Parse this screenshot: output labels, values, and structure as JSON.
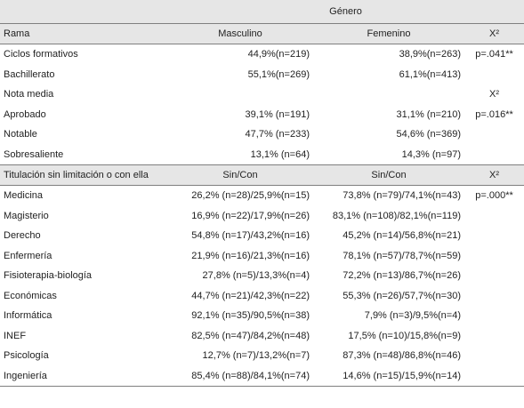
{
  "header": {
    "genero": "Género",
    "rama": "Rama",
    "masculino": "Masculino",
    "femenino": "Femenino",
    "chi": "X²"
  },
  "rama_rows": [
    {
      "label": "Ciclos formativos",
      "m": "44,9%(n=219)",
      "f": "38,9%(n=263)",
      "p": "p=.041**"
    },
    {
      "label": "Bachillerato",
      "m": "55,1%(n=269)",
      "f": "61,1%(n=413)",
      "p": ""
    }
  ],
  "nota_header": {
    "label": "Nota media",
    "chi": "X²"
  },
  "nota_rows": [
    {
      "label": "Aprobado",
      "m": "39,1% (n=191)",
      "f": "31,1% (n=210)",
      "p": "p=.016**"
    },
    {
      "label": "Notable",
      "m": "47,7% (n=233)",
      "f": "54,6% (n=369)",
      "p": ""
    },
    {
      "label": "Sobresaliente",
      "m": "13,1% (n=64)",
      "f": "14,3% (n=97)",
      "p": ""
    }
  ],
  "titulacion_header": {
    "label": "Titulación sin  limitación o con ella",
    "m": "Sin/Con",
    "f": "Sin/Con",
    "chi": "X²"
  },
  "titulacion_rows": [
    {
      "label": "Medicina",
      "m": "26,2% (n=28)/25,9%(n=15)",
      "f": "73,8% (n=79)/74,1%(n=43)",
      "p": "p=.000**"
    },
    {
      "label": "Magisterio",
      "m": "16,9% (n=22)/17,9%(n=26)",
      "f": "83,1% (n=108)/82,1%(n=119)",
      "p": ""
    },
    {
      "label": "Derecho",
      "m": "54,8% (n=17)/43,2%(n=16)",
      "f": "45,2% (n=14)/56,8%(n=21)",
      "p": ""
    },
    {
      "label": "Enfermería",
      "m": "21,9% (n=16)/21,3%(n=16)",
      "f": "78,1% (n=57)/78,7%(n=59)",
      "p": ""
    },
    {
      "label": "Fisioterapia-biología",
      "m": "27,8% (n=5)/13,3%(n=4)",
      "f": "72,2% (n=13)/86,7%(n=26)",
      "p": ""
    },
    {
      "label": "Económicas",
      "m": "44,7% (n=21)/42,3%(n=22)",
      "f": "55,3% (n=26)/57,7%(n=30)",
      "p": ""
    },
    {
      "label": "Informática",
      "m": "92,1% (n=35)/90,5%(n=38)",
      "f": "7,9% (n=3)/9,5%(n=4)",
      "p": ""
    },
    {
      "label": "INEF",
      "m": "82,5% (n=47)/84,2%(n=48)",
      "f": "17,5% (n=10)/15,8%(n=9)",
      "p": ""
    },
    {
      "label": "Psicología",
      "m": "12,7% (n=7)/13,2%(n=7)",
      "f": "87,3% (n=48)/86,8%(n=46)",
      "p": ""
    },
    {
      "label": "Ingeniería",
      "m": "85,4% (n=88)/84,1%(n=74)",
      "f": "14,6% (n=15)/15,9%(n=14)",
      "p": ""
    }
  ]
}
